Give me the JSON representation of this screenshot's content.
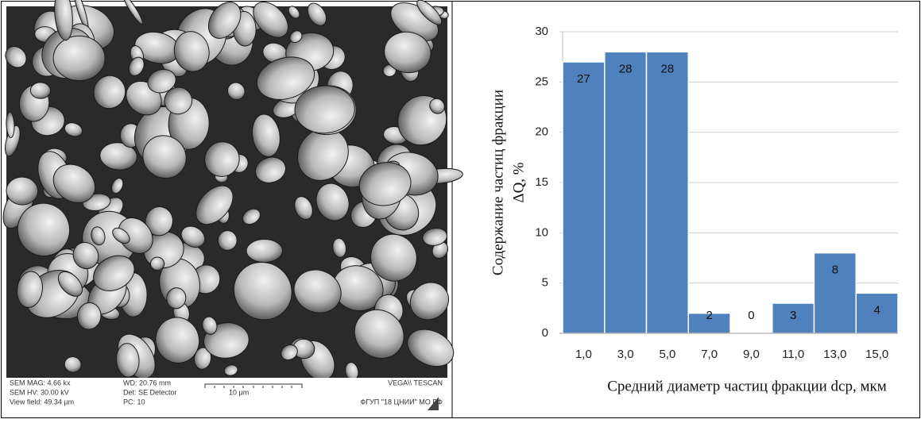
{
  "micrograph": {
    "footer": [
      [
        "SEM MAG: 4.66 kx",
        "WD: 20.76 mm",
        "VEGA\\\\ TESCAN"
      ],
      [
        "SEM HV: 30.00 kV",
        "Det: SE Detector",
        "10 μm"
      ],
      [
        "View field: 49.34 μm",
        "PC: 10",
        "ФГУП \"18 ЦНИИ\" МО РФ"
      ]
    ]
  },
  "chart_data": {
    "type": "bar",
    "ylabel": [
      "Содержание частиц фракции",
      "ΔQ, %"
    ],
    "xlabel": "Средний диаметр частиц фракции dср, мкм",
    "categories": [
      "1,0",
      "3,0",
      "5,0",
      "7,0",
      "9,0",
      "11,0",
      "13,0",
      "15,0"
    ],
    "values": [
      27,
      28,
      28,
      2,
      0,
      3,
      8,
      4
    ],
    "color": "#4f81bd",
    "ylim": [
      0,
      30
    ],
    "yticks": [
      0,
      5,
      10,
      15,
      20,
      25,
      30
    ],
    "grid": true,
    "data_labels": true
  }
}
